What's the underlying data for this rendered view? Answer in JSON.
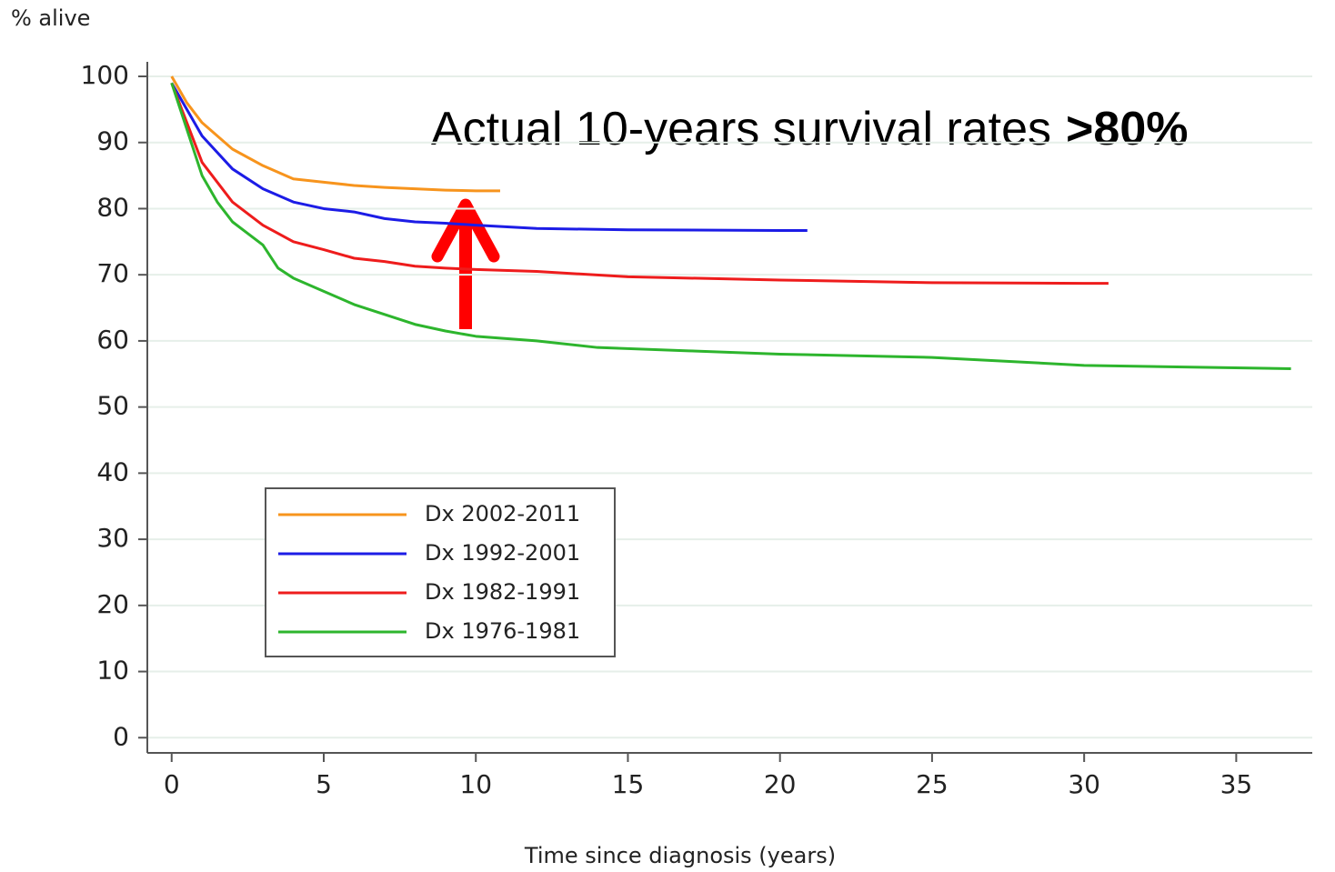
{
  "chart_data": {
    "type": "line",
    "y_label": "% alive",
    "x_label": "Time since diagnosis (years)",
    "annotation": {
      "text": "Actual 10-years survival rates",
      "highlight": ">80%"
    },
    "xlim": [
      -0.8,
      37.5
    ],
    "ylim": [
      -2.3,
      102.2
    ],
    "xticks": [
      0,
      5,
      10,
      15,
      20,
      25,
      30,
      35
    ],
    "yticks": [
      0,
      10,
      20,
      30,
      40,
      50,
      60,
      70,
      80,
      90,
      100
    ],
    "grid": true,
    "series": [
      {
        "name": "Dx 2002-2011",
        "color": "#f7941d",
        "x": [
          0,
          0.5,
          1,
          2,
          3,
          4,
          5,
          6,
          7,
          8,
          9,
          10,
          10.8
        ],
        "values": [
          100,
          96,
          93,
          89,
          86.5,
          84.5,
          84,
          83.5,
          83.2,
          83,
          82.8,
          82.7,
          82.7
        ]
      },
      {
        "name": "Dx 1992-2001",
        "color": "#1c1ce6",
        "x": [
          0,
          0.5,
          1,
          2,
          3,
          4,
          5,
          6,
          7,
          8,
          9,
          10,
          12,
          15,
          20,
          20.9
        ],
        "values": [
          99,
          95,
          91,
          86,
          83,
          81,
          80,
          79.5,
          78.5,
          78,
          77.8,
          77.5,
          77,
          76.8,
          76.7,
          76.7
        ]
      },
      {
        "name": "Dx 1982-1991",
        "color": "#ee1c1c",
        "x": [
          0,
          0.5,
          1,
          2,
          3,
          4,
          5,
          6,
          7,
          8,
          9,
          10,
          12,
          15,
          20,
          25,
          30,
          30.8
        ],
        "values": [
          99,
          93,
          87,
          81,
          77.5,
          75,
          73.8,
          72.5,
          72,
          71.3,
          71,
          70.8,
          70.5,
          69.7,
          69.2,
          68.8,
          68.7,
          68.7
        ]
      },
      {
        "name": "Dx 1976-1981",
        "color": "#2db52d",
        "x": [
          0,
          0.5,
          1,
          1.5,
          2,
          3,
          3.5,
          4,
          5,
          6,
          7,
          8,
          9,
          10,
          12,
          14,
          17,
          20,
          25,
          30,
          34,
          36.8
        ],
        "values": [
          99,
          92,
          85,
          81,
          78,
          74.5,
          71,
          69.5,
          67.5,
          65.5,
          64,
          62.5,
          61.5,
          60.7,
          60,
          59,
          58.5,
          58,
          57.5,
          56.3,
          56,
          55.8
        ]
      }
    ]
  }
}
